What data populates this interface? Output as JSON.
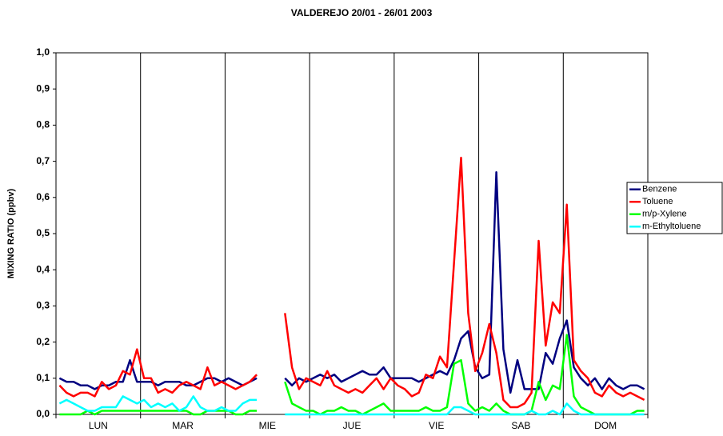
{
  "chart_data": {
    "type": "line",
    "title": "VALDEREJO  20/01 -  26/01 2003",
    "ylabel": "MIXING RATIO (ppbv)",
    "categories": [
      null,
      null,
      null,
      null,
      null,
      "LUN",
      null,
      null,
      null,
      null,
      null,
      null,
      null,
      null,
      null,
      null,
      null,
      "MAR",
      null,
      null,
      null,
      null,
      null,
      null,
      null,
      null,
      null,
      null,
      null,
      "MIE",
      null,
      null,
      null,
      null,
      null,
      null,
      null,
      null,
      null,
      null,
      null,
      "JUE",
      null,
      null,
      null,
      null,
      null,
      null,
      null,
      null,
      null,
      null,
      null,
      "VIE",
      null,
      null,
      null,
      null,
      null,
      null,
      null,
      null,
      null,
      null,
      null,
      "SAB",
      null,
      null,
      null,
      null,
      null,
      null,
      null,
      null,
      null,
      null,
      null,
      "DOM",
      null,
      null,
      null,
      null,
      null,
      null
    ],
    "ylim": [
      0,
      1
    ],
    "yticks": [
      {
        "value": 0,
        "label": "0,0"
      },
      {
        "value": 0.1,
        "label": "0,1"
      },
      {
        "value": 0.2,
        "label": "0,2"
      },
      {
        "value": 0.3,
        "label": "0,3"
      },
      {
        "value": 0.4,
        "label": "0,4"
      },
      {
        "value": 0.5,
        "label": "0,5"
      },
      {
        "value": 0.6,
        "label": "0,6"
      },
      {
        "value": 0.7,
        "label": "0,7"
      },
      {
        "value": 0.8,
        "label": "0,8"
      },
      {
        "value": 0.9,
        "label": "0,9"
      },
      {
        "value": 1,
        "label": "1,0"
      }
    ],
    "grid": false,
    "legend": "right",
    "series": [
      {
        "name": "Benzene",
        "color": "#000080",
        "values": [
          0.1,
          0.09,
          0.09,
          0.08,
          0.08,
          0.07,
          0.08,
          0.08,
          0.09,
          0.09,
          0.15,
          0.09,
          0.09,
          0.09,
          0.08,
          0.09,
          0.09,
          0.09,
          0.08,
          0.08,
          0.09,
          0.1,
          0.1,
          0.09,
          0.1,
          0.09,
          0.08,
          0.09,
          0.1,
          null,
          null,
          null,
          0.1,
          0.08,
          0.1,
          0.09,
          0.1,
          0.11,
          0.1,
          0.11,
          0.09,
          0.1,
          0.11,
          0.12,
          0.11,
          0.11,
          0.13,
          0.1,
          0.1,
          0.1,
          0.1,
          0.09,
          0.1,
          0.11,
          0.12,
          0.11,
          0.15,
          0.21,
          0.23,
          0.13,
          0.1,
          0.11,
          0.67,
          0.18,
          0.06,
          0.15,
          0.07,
          0.07,
          0.07,
          0.17,
          0.14,
          0.21,
          0.26,
          0.13,
          0.1,
          0.08,
          0.1,
          0.07,
          0.1,
          0.08,
          0.07,
          0.08,
          0.08,
          0.07
        ]
      },
      {
        "name": "Toluene",
        "color": "#ff0000",
        "values": [
          0.08,
          0.06,
          0.05,
          0.06,
          0.06,
          0.05,
          0.09,
          0.07,
          0.08,
          0.12,
          0.11,
          0.18,
          0.1,
          0.1,
          0.06,
          0.07,
          0.06,
          0.08,
          0.09,
          0.08,
          0.07,
          0.13,
          0.08,
          0.09,
          0.08,
          0.07,
          0.08,
          0.09,
          0.11,
          null,
          null,
          null,
          0.28,
          0.13,
          0.07,
          0.1,
          0.09,
          0.08,
          0.12,
          0.08,
          0.07,
          0.06,
          0.07,
          0.06,
          0.08,
          0.1,
          0.07,
          0.1,
          0.08,
          0.07,
          0.05,
          0.06,
          0.11,
          0.1,
          0.16,
          0.13,
          0.42,
          0.71,
          0.28,
          0.12,
          0.17,
          0.25,
          0.17,
          0.04,
          0.02,
          0.02,
          0.03,
          0.06,
          0.48,
          0.19,
          0.31,
          0.28,
          0.58,
          0.15,
          0.12,
          0.1,
          0.06,
          0.05,
          0.08,
          0.06,
          0.05,
          0.06,
          0.05,
          0.04
        ]
      },
      {
        "name": "m/p-Xylene",
        "color": "#00ff00",
        "values": [
          0.0,
          0.0,
          0.0,
          0.0,
          0.01,
          0.0,
          0.01,
          0.01,
          0.01,
          0.01,
          0.01,
          0.01,
          0.01,
          0.01,
          0.01,
          0.01,
          0.01,
          0.01,
          0.01,
          0.0,
          0.0,
          0.01,
          0.01,
          0.01,
          0.01,
          0.0,
          0.0,
          0.01,
          0.01,
          null,
          null,
          null,
          0.09,
          0.03,
          0.02,
          0.01,
          0.01,
          0.0,
          0.01,
          0.01,
          0.02,
          0.01,
          0.01,
          0.0,
          0.01,
          0.02,
          0.03,
          0.01,
          0.01,
          0.01,
          0.01,
          0.01,
          0.02,
          0.01,
          0.01,
          0.02,
          0.14,
          0.15,
          0.03,
          0.01,
          0.02,
          0.01,
          0.03,
          0.01,
          0.0,
          0.0,
          0.0,
          0.01,
          0.09,
          0.04,
          0.08,
          0.07,
          0.22,
          0.05,
          0.02,
          0.01,
          0.0,
          0.0,
          0.0,
          0.0,
          0.0,
          0.0,
          0.01,
          0.01
        ]
      },
      {
        "name": "m-Ethyltoluene",
        "color": "#00ffff",
        "values": [
          0.03,
          0.04,
          0.03,
          0.02,
          0.01,
          0.01,
          0.02,
          0.02,
          0.02,
          0.05,
          0.04,
          0.03,
          0.04,
          0.02,
          0.03,
          0.02,
          0.03,
          0.01,
          0.02,
          0.05,
          0.02,
          0.01,
          0.01,
          0.02,
          0.01,
          0.01,
          0.03,
          0.04,
          0.04,
          null,
          null,
          null,
          0.0,
          0.0,
          0.0,
          0.0,
          0.0,
          0.0,
          0.0,
          0.0,
          0.0,
          0.0,
          0.0,
          0.0,
          0.0,
          0.0,
          0.0,
          0.0,
          0.0,
          0.0,
          0.0,
          0.0,
          0.0,
          0.0,
          0.0,
          0.0,
          0.02,
          0.02,
          0.01,
          0.0,
          0.0,
          0.0,
          0.0,
          0.0,
          0.0,
          0.0,
          0.0,
          0.01,
          0.0,
          0.0,
          0.01,
          0.0,
          0.03,
          0.01,
          0.0,
          0.0,
          0.0,
          0.0,
          0.0,
          0.0,
          0.0,
          0.0,
          0.0,
          0.0
        ]
      }
    ]
  }
}
